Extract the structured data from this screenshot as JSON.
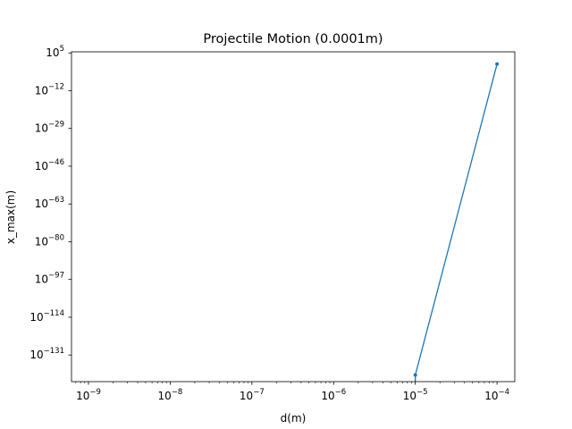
{
  "chart_data": {
    "type": "line",
    "title": "Projectile Motion (0.0001m)",
    "xlabel": "d(m)",
    "ylabel": "x_max(m)",
    "x_scale": "log",
    "y_scale": "log",
    "xlim": [
      6.2e-10,
      0.000165
    ],
    "ylim_exp": [
      -143,
      5.5
    ],
    "grid": false,
    "legend": "none",
    "x_ticks": [
      {
        "exp": -9,
        "label": "10",
        "sup": "−9"
      },
      {
        "exp": -8,
        "label": "10",
        "sup": "−8"
      },
      {
        "exp": -7,
        "label": "10",
        "sup": "−7"
      },
      {
        "exp": -6,
        "label": "10",
        "sup": "−6"
      },
      {
        "exp": -5,
        "label": "10",
        "sup": "−5"
      },
      {
        "exp": -4,
        "label": "10",
        "sup": "−4"
      }
    ],
    "y_ticks": [
      {
        "exp": 5,
        "label": "10",
        "sup": "5"
      },
      {
        "exp": -12,
        "label": "10",
        "sup": "−12"
      },
      {
        "exp": -29,
        "label": "10",
        "sup": "−29"
      },
      {
        "exp": -46,
        "label": "10",
        "sup": "−46"
      },
      {
        "exp": -63,
        "label": "10",
        "sup": "−63"
      },
      {
        "exp": -80,
        "label": "10",
        "sup": "−80"
      },
      {
        "exp": -97,
        "label": "10",
        "sup": "−97"
      },
      {
        "exp": -114,
        "label": "10",
        "sup": "−114"
      },
      {
        "exp": -131,
        "label": "10",
        "sup": "−131"
      }
    ],
    "series": [
      {
        "color": "#1f77b4",
        "points": [
          {
            "x": 1e-05,
            "y_exp": -140
          },
          {
            "x": 0.0001,
            "y_exp": 0
          }
        ],
        "continues_below_axis": true
      }
    ]
  }
}
